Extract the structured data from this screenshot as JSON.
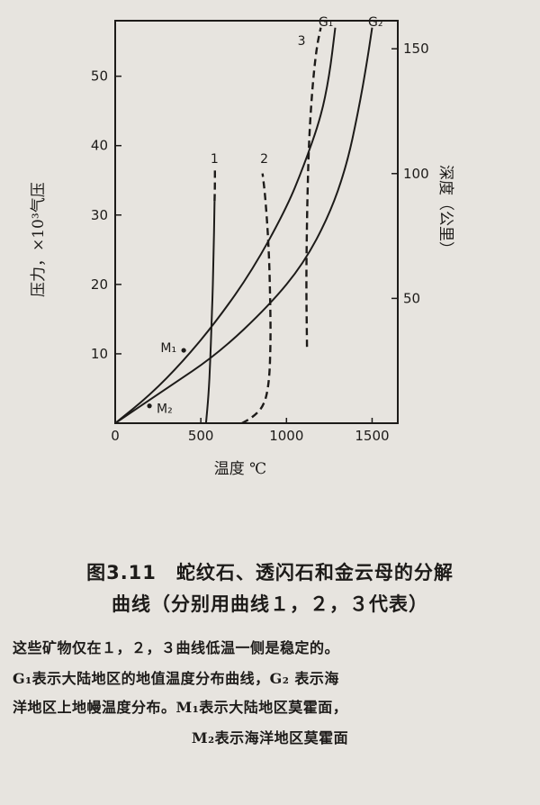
{
  "chart_data": {
    "type": "line",
    "xlabel": "温度 ℃",
    "ylabel_left": "压力，×10³气压",
    "ylabel_right": "深度（公里）",
    "xlim": [
      0,
      1650
    ],
    "ylim": [
      0,
      58
    ],
    "x_ticks": [
      0,
      500,
      1000,
      1500
    ],
    "y_ticks": [
      10,
      20,
      30,
      40,
      50
    ],
    "right_ticks": [
      50,
      100,
      150
    ],
    "right_depth_per_pressure_unit": 2.78,
    "grid": false,
    "series": [
      {
        "name": "1",
        "style": "solid",
        "points": [
          [
            530,
            0
          ],
          [
            545,
            4
          ],
          [
            555,
            9
          ],
          [
            562,
            14
          ],
          [
            568,
            18
          ],
          [
            572,
            22
          ],
          [
            576,
            26
          ],
          [
            578,
            29
          ],
          [
            580,
            32
          ]
        ]
      },
      {
        "name": "1",
        "style": "dashed",
        "points": [
          [
            580,
            32
          ],
          [
            582,
            34
          ],
          [
            582,
            37
          ]
        ]
      },
      {
        "name": "2",
        "style": "dashed",
        "points": [
          [
            740,
            0
          ],
          [
            800,
            0.8
          ],
          [
            870,
            2.5
          ],
          [
            900,
            6
          ],
          [
            908,
            12
          ],
          [
            905,
            18
          ],
          [
            900,
            23
          ],
          [
            890,
            28
          ],
          [
            875,
            33
          ],
          [
            860,
            36
          ]
        ]
      },
      {
        "name": "3",
        "style": "dashed",
        "points": [
          [
            1120,
            11
          ],
          [
            1115,
            20
          ],
          [
            1120,
            30
          ],
          [
            1130,
            40
          ],
          [
            1150,
            48
          ],
          [
            1175,
            54
          ],
          [
            1200,
            57
          ]
        ]
      },
      {
        "name": "G1",
        "style": "solid",
        "points": [
          [
            0,
            0
          ],
          [
            200,
            4
          ],
          [
            400,
            9
          ],
          [
            600,
            15
          ],
          [
            800,
            22
          ],
          [
            1000,
            31
          ],
          [
            1100,
            37
          ],
          [
            1200,
            44
          ],
          [
            1250,
            50
          ],
          [
            1285,
            57
          ]
        ]
      },
      {
        "name": "G2",
        "style": "solid",
        "points": [
          [
            0,
            0
          ],
          [
            300,
            5
          ],
          [
            600,
            10
          ],
          [
            900,
            17
          ],
          [
            1100,
            23
          ],
          [
            1250,
            30
          ],
          [
            1350,
            37
          ],
          [
            1420,
            45
          ],
          [
            1470,
            52
          ],
          [
            1500,
            57
          ]
        ]
      }
    ],
    "annotations": [
      {
        "text": "M₁",
        "x": 400,
        "y": 10.5
      },
      {
        "text": "M₂",
        "x": 200,
        "y": 2.5
      },
      {
        "text": "G₁",
        "x": 1230,
        "y": 58
      },
      {
        "text": "G₂",
        "x": 1520,
        "y": 58
      },
      {
        "text": "1",
        "x": 580,
        "y": 37
      },
      {
        "text": "2",
        "x": 870,
        "y": 37
      },
      {
        "text": "3",
        "x": 1130,
        "y": 55
      }
    ],
    "points": [
      {
        "label": "M₁",
        "x": 400,
        "y": 10.5
      },
      {
        "label": "M₂",
        "x": 200,
        "y": 2.5
      }
    ]
  },
  "caption": {
    "title_line1": "图3.11　蛇纹石、透闪石和金云母的分解",
    "title_line2": "曲线（分别用曲线１，２，３代表）"
  },
  "notes": [
    "这些矿物仅在１，２，３曲线低温一侧是稳定的。",
    "G₁表示大陆地区的地值温度分布曲线，G₂ 表示海",
    "洋地区上地幔温度分布。M₁表示大陆地区莫霍面，",
    "M₂表示海洋地区莫霍面"
  ]
}
